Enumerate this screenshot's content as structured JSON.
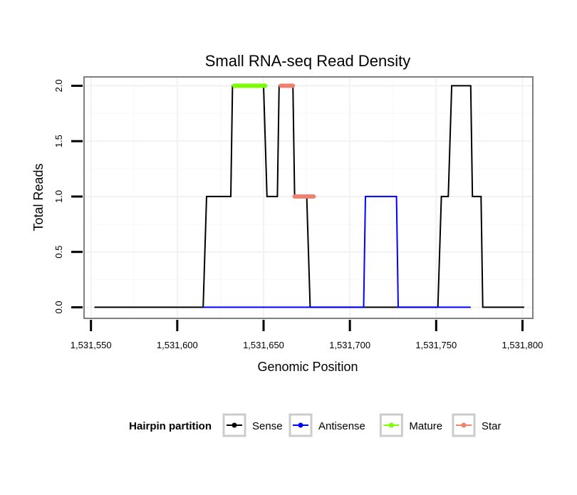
{
  "chart_data": {
    "type": "line",
    "title": "Small RNA-seq Read Density",
    "xlabel": "Genomic Position",
    "ylabel": "Total Reads",
    "xlim": [
      1531546,
      1531806
    ],
    "ylim": [
      -0.1,
      2.08
    ],
    "x_ticks": [
      1531550,
      1531600,
      1531650,
      1531700,
      1531750,
      1531800
    ],
    "x_tick_labels": [
      "1,531,550",
      "1,531,600",
      "1,531,650",
      "1,531,700",
      "1,531,750",
      "1,531,800"
    ],
    "y_ticks": [
      0,
      0.5,
      1,
      1.5,
      2
    ],
    "y_tick_labels": [
      "0.0",
      "0.5",
      "1.0",
      "1.5",
      "2.0"
    ],
    "grid": true,
    "legend": {
      "title": "Hairpin partition",
      "position": "bottom",
      "entries": [
        {
          "label": "Sense",
          "color": "#000000"
        },
        {
          "label": "Antisense",
          "color": "#0000ff"
        },
        {
          "label": "Mature",
          "color": "#7cfc00"
        },
        {
          "label": "Star",
          "color": "#f08070"
        }
      ]
    },
    "series": [
      {
        "name": "Sense",
        "color": "#000000",
        "width": 2,
        "points": [
          [
            1531552,
            0
          ],
          [
            1531615,
            0
          ],
          [
            1531617,
            1
          ],
          [
            1531625,
            1
          ],
          [
            1531631,
            1
          ],
          [
            1531632,
            2
          ],
          [
            1531645,
            2
          ],
          [
            1531650,
            2
          ],
          [
            1531652,
            1
          ],
          [
            1531658,
            1
          ],
          [
            1531659,
            2
          ],
          [
            1531667,
            2
          ],
          [
            1531668,
            1
          ],
          [
            1531675,
            1
          ],
          [
            1531677,
            0
          ],
          [
            1531700,
            0
          ],
          [
            1531751,
            0
          ],
          [
            1531753,
            1
          ],
          [
            1531757,
            1
          ],
          [
            1531759,
            2
          ],
          [
            1531770,
            2
          ],
          [
            1531771,
            1
          ],
          [
            1531776,
            1
          ],
          [
            1531777,
            0
          ],
          [
            1531801,
            0
          ]
        ]
      },
      {
        "name": "Antisense",
        "color": "#0000ff",
        "width": 2,
        "points": [
          [
            1531615,
            0
          ],
          [
            1531708,
            0
          ],
          [
            1531709,
            1
          ],
          [
            1531727,
            1
          ],
          [
            1531728,
            0
          ],
          [
            1531770,
            0
          ]
        ]
      },
      {
        "name": "Mature",
        "color": "#7cfc00",
        "width": 6,
        "points": [
          [
            1531633,
            2
          ],
          [
            1531651,
            2
          ]
        ]
      },
      {
        "name": "Star",
        "color": "#f08070",
        "width": 6,
        "points": [
          [
            1531660,
            2
          ],
          [
            1531667,
            2
          ]
        ]
      },
      {
        "name": "Star",
        "color": "#f08070",
        "width": 6,
        "points": [
          [
            1531668,
            1
          ],
          [
            1531679,
            1
          ]
        ]
      }
    ]
  }
}
